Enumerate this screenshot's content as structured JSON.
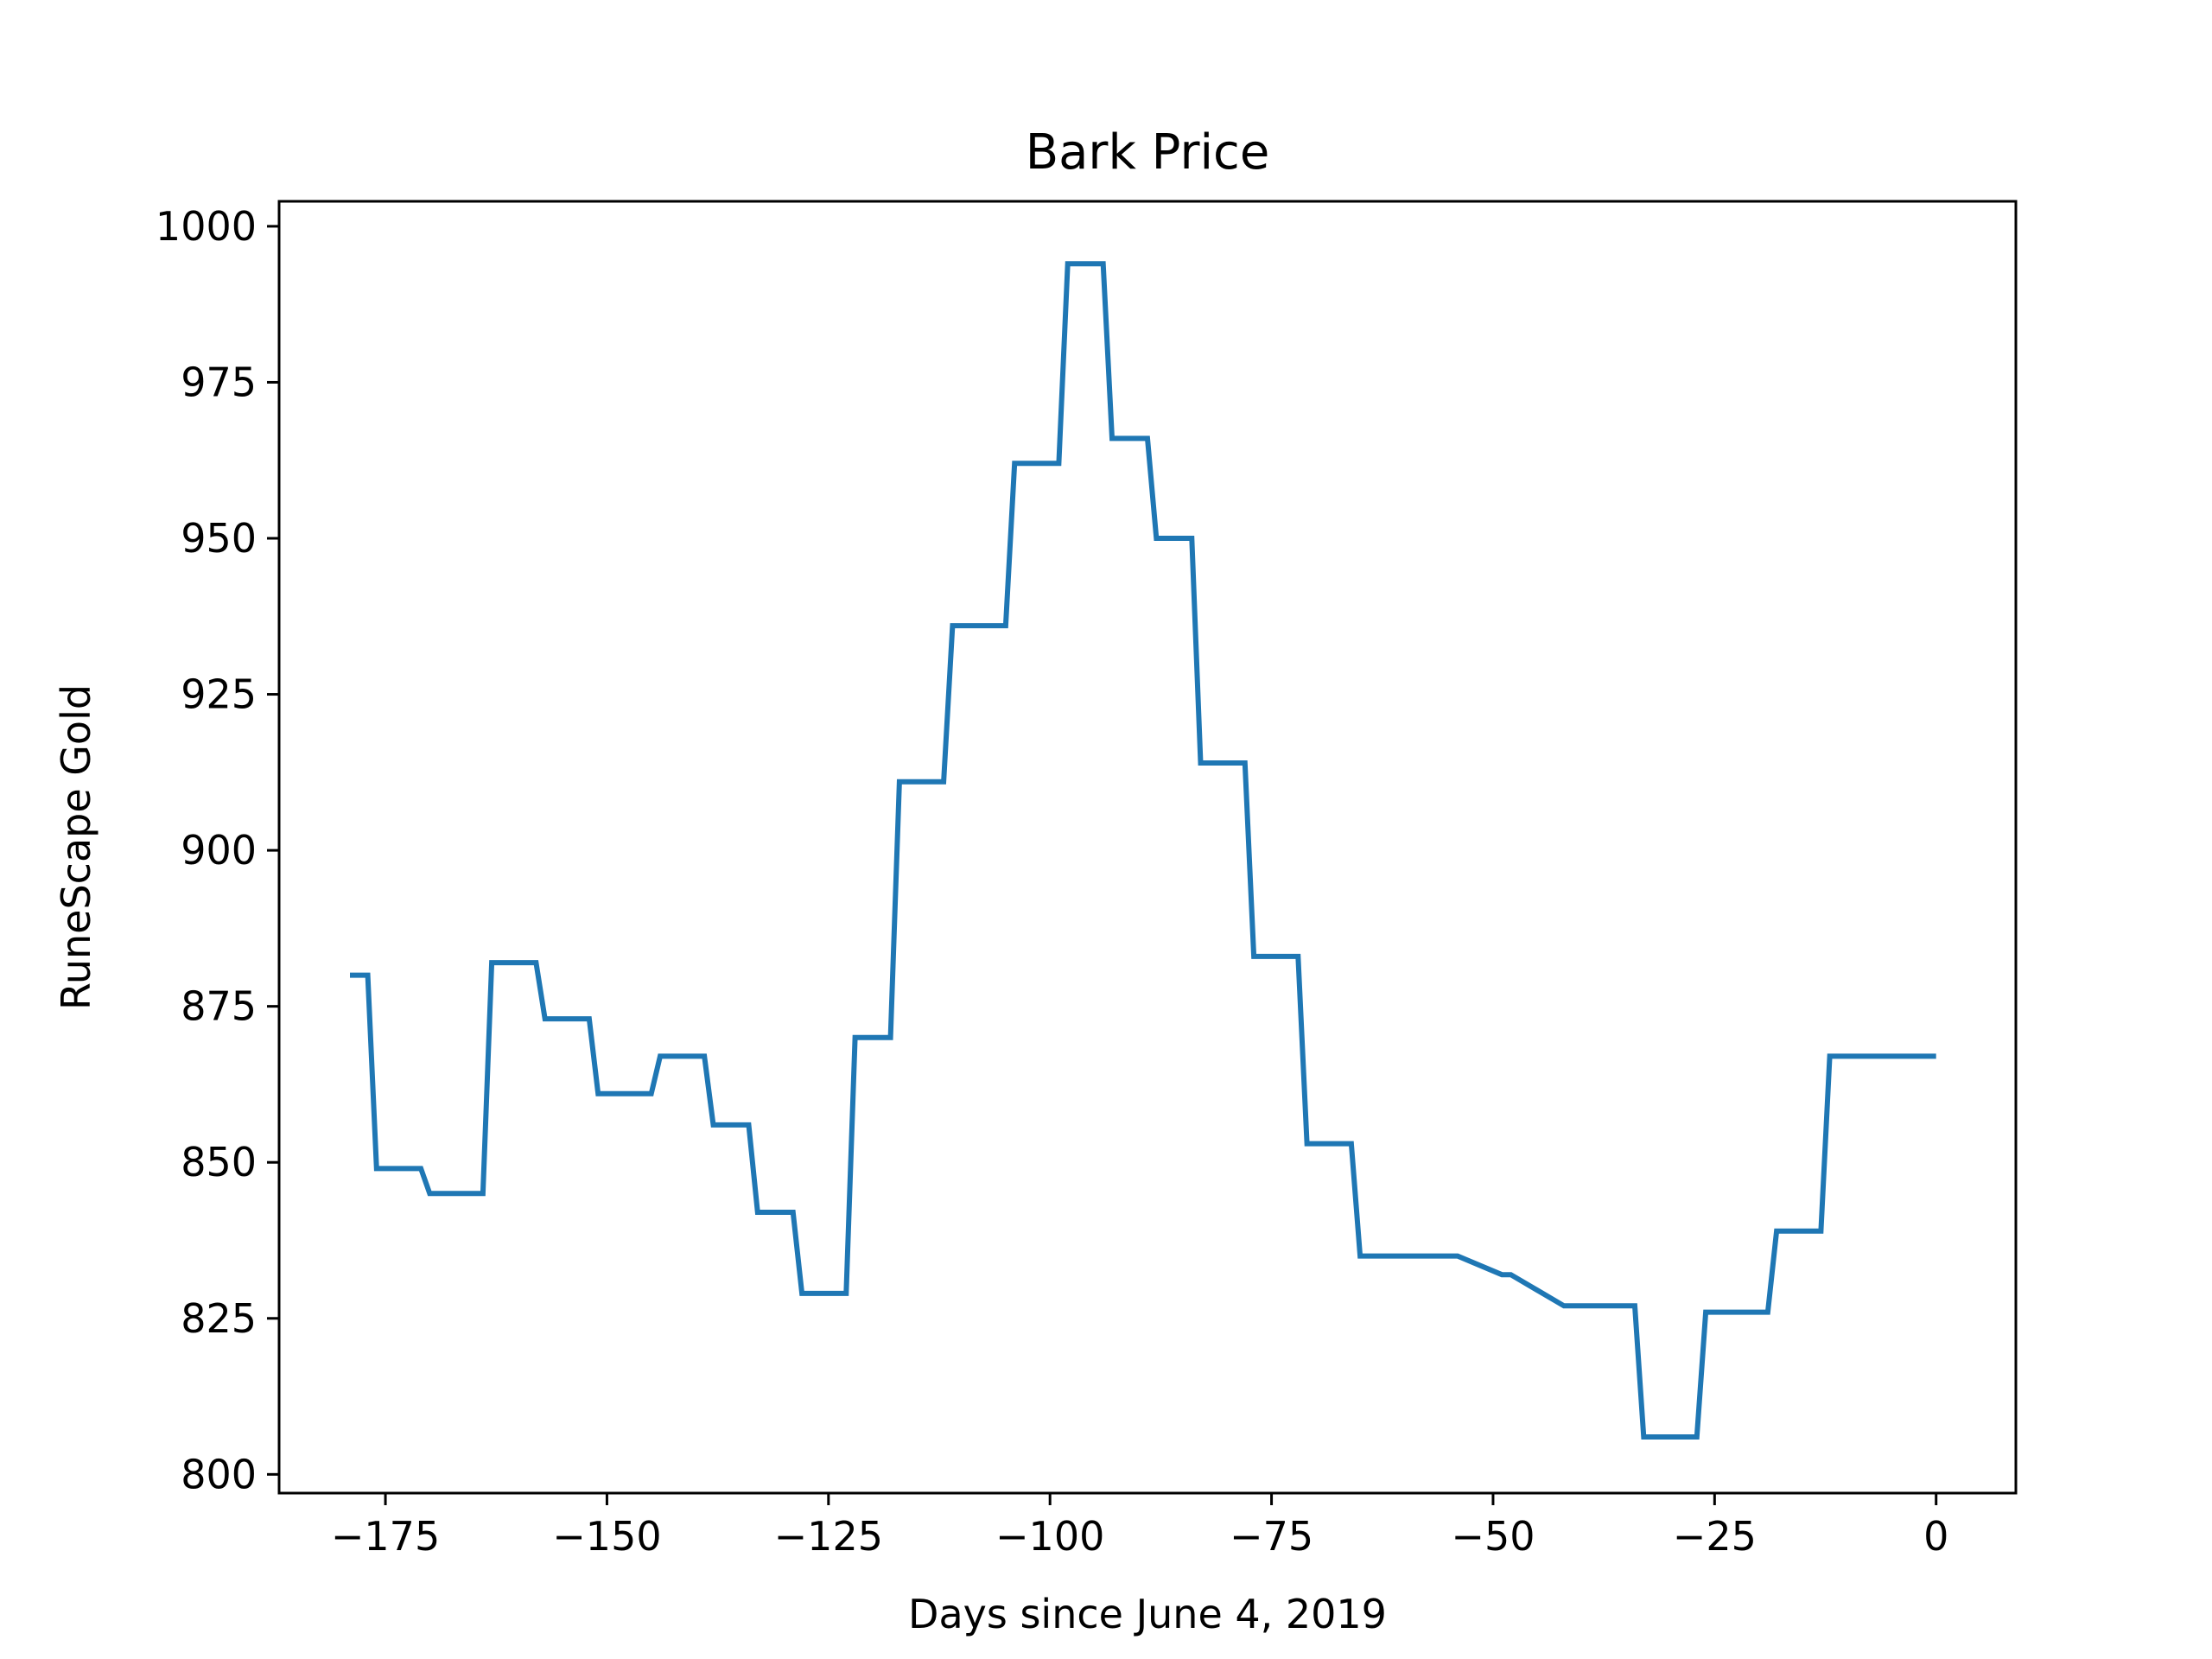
{
  "chart_data": {
    "type": "line",
    "title": "Bark Price",
    "xlabel": "Days since June 4, 2019",
    "ylabel": "RuneScape Gold",
    "xlim": [
      -187,
      9
    ],
    "ylim": [
      797,
      1004
    ],
    "xticks": [
      -175,
      -150,
      -125,
      -100,
      -75,
      -50,
      -25,
      0
    ],
    "xtick_labels": [
      "−175",
      "−150",
      "−125",
      "−100",
      "−75",
      "−50",
      "−25",
      "0"
    ],
    "yticks": [
      800,
      825,
      850,
      875,
      900,
      925,
      950,
      975,
      1000
    ],
    "ytick_labels": [
      "800",
      "825",
      "850",
      "875",
      "900",
      "925",
      "950",
      "975",
      "1000"
    ],
    "grid": false,
    "line_color": "#1f77b4",
    "series": [
      {
        "x": [
          -179,
          -178,
          -177,
          -176,
          -171,
          -170,
          -164,
          -163,
          -158,
          -157,
          -152,
          -151,
          -145,
          -144,
          -139,
          -138,
          -134,
          -133,
          -129,
          -128,
          -123,
          -122,
          -118,
          -117,
          -112,
          -111,
          -105,
          -104,
          -99,
          -98,
          -94,
          -93,
          -89,
          -88,
          -84,
          -83,
          -78,
          -77,
          -72,
          -71,
          -66,
          -65,
          -60,
          -59,
          -54,
          -49,
          -48,
          -42,
          -41,
          -34,
          -33,
          -27,
          -26,
          -19,
          -18,
          -13,
          -12,
          -7,
          -6,
          0
        ],
        "y": [
          880,
          880,
          880,
          849,
          849,
          845,
          845,
          882,
          882,
          873,
          873,
          861,
          861,
          867,
          867,
          856,
          856,
          842,
          842,
          829,
          829,
          870,
          870,
          911,
          911,
          936,
          936,
          962,
          962,
          994,
          994,
          966,
          966,
          950,
          950,
          914,
          914,
          883,
          883,
          853,
          853,
          835,
          835,
          835,
          835,
          832,
          832,
          827,
          827,
          827,
          806,
          806,
          826,
          826,
          839,
          839,
          867,
          867,
          867,
          867
        ]
      }
    ]
  }
}
